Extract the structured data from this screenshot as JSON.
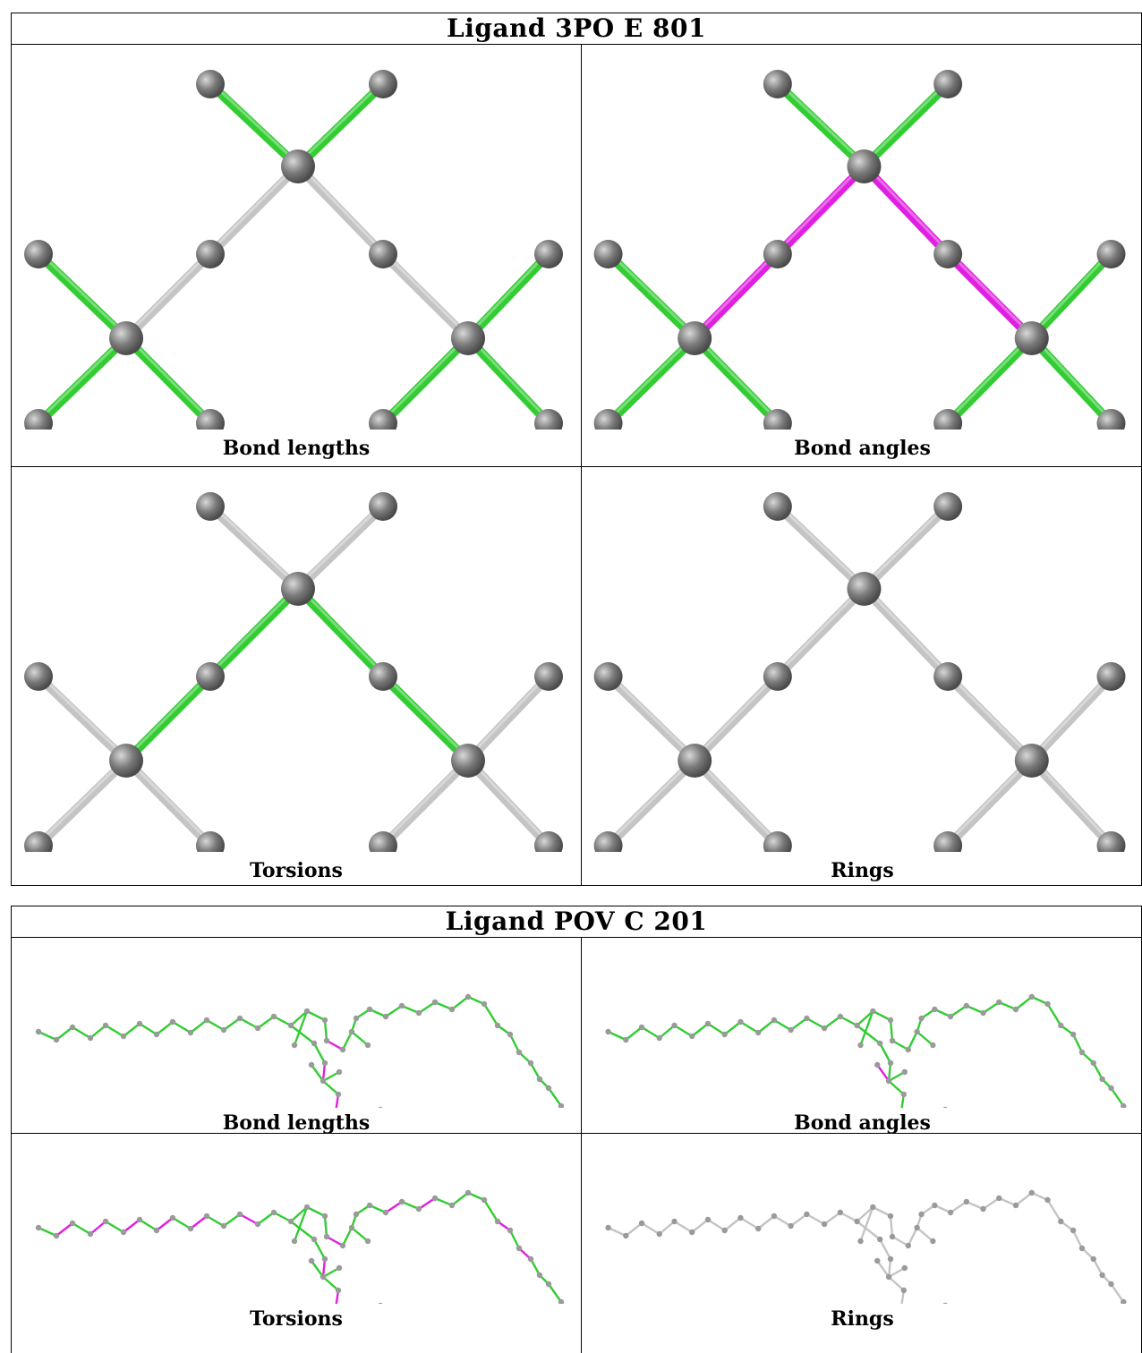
{
  "ligand1": {
    "title": "Ligand 3PO E 801",
    "panels": [
      {
        "caption": "Bond lengths",
        "scheme": "lengths"
      },
      {
        "caption": "Bond angles",
        "scheme": "angles"
      },
      {
        "caption": "Torsions",
        "scheme": "torsions"
      },
      {
        "caption": "Rings",
        "scheme": "rings"
      }
    ]
  },
  "ligand2": {
    "title": "Ligand POV C 201",
    "panels": [
      {
        "caption": "Bond lengths",
        "scheme": "lengths"
      },
      {
        "caption": "Bond angles",
        "scheme": "angles"
      },
      {
        "caption": "Torsions",
        "scheme": "torsions"
      },
      {
        "caption": "Rings",
        "scheme": "rings"
      }
    ]
  },
  "colors": {
    "ok": "#33cc33",
    "outlier": "#e020e0",
    "neutral": "#c4c4c4",
    "atom": "#7a7a7a"
  }
}
